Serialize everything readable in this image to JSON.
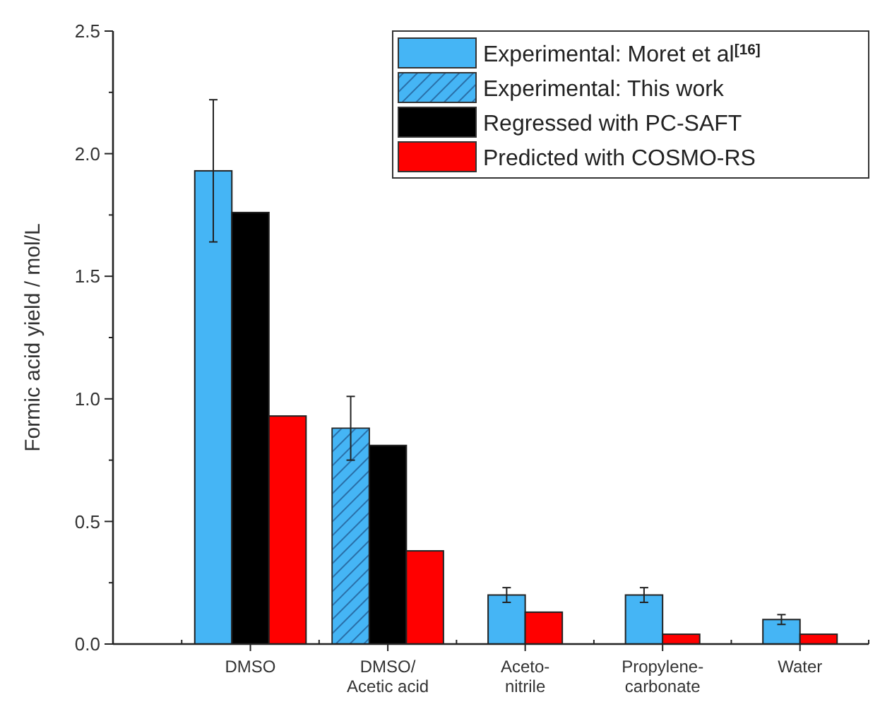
{
  "chart_data": {
    "type": "bar",
    "ylabel": "Formic acid yield / mol/L",
    "categories": [
      "DMSO",
      "DMSO/\nAcetic acid",
      "Aceto-\nnitrile",
      "Propylene-\ncarbonate",
      "Water"
    ],
    "series": [
      {
        "name": "Experimental: Moret et al$^{[16]}$",
        "color": "#45b5f5",
        "values": [
          1.93,
          null,
          0.2,
          0.2,
          0.1
        ],
        "errors": [
          0.29,
          null,
          0.03,
          0.03,
          0.02
        ]
      },
      {
        "name": "Experimental: This work",
        "color": "#45b5f5",
        "values": [
          null,
          0.88,
          null,
          null,
          null
        ],
        "errors": [
          null,
          0.13,
          null,
          null,
          null
        ]
      },
      {
        "name": "Regressed with PC-SAFT",
        "color": "#000000",
        "values": [
          1.76,
          0.81,
          null,
          null,
          null
        ]
      },
      {
        "name": "Predicted with COSMO-RS",
        "color": "#ff0000",
        "values": [
          0.93,
          0.38,
          0.13,
          0.04,
          0.04
        ]
      }
    ],
    "ylim": [
      0,
      2.5
    ],
    "yticks": [
      {
        "value": 0,
        "label": "0.0"
      },
      {
        "value": 0.25,
        "label": null
      },
      {
        "value": 0.5,
        "label": "0.5"
      },
      {
        "value": 0.75,
        "label": null
      },
      {
        "value": 1,
        "label": "1.0"
      },
      {
        "value": 1.25,
        "label": null
      },
      {
        "value": 1.5,
        "label": "1.5"
      },
      {
        "value": 1.75,
        "label": null
      },
      {
        "value": 2,
        "label": "2.0"
      },
      {
        "value": 2.25,
        "label": null
      },
      {
        "value": 2.5,
        "label": "2.5"
      }
    ],
    "legend": "top right",
    "grid": false
  }
}
